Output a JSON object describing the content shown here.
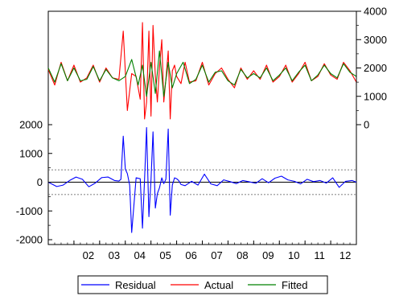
{
  "chart_data": {
    "type": "line",
    "x_range": [
      2001.0,
      2013.0
    ],
    "x_ticks": [
      {
        "label": "02",
        "value": 2002
      },
      {
        "label": "03",
        "value": 2003
      },
      {
        "label": "04",
        "value": 2004
      },
      {
        "label": "05",
        "value": 2005
      },
      {
        "label": "06",
        "value": 2006
      },
      {
        "label": "07",
        "value": 2007
      },
      {
        "label": "08",
        "value": 2008
      },
      {
        "label": "09",
        "value": 2009
      },
      {
        "label": "10",
        "value": 2010
      },
      {
        "label": "11",
        "value": 2011
      },
      {
        "label": "12",
        "value": 2012
      }
    ],
    "left_axis": {
      "series": "Residual",
      "ylim": [
        -2000,
        2000
      ],
      "ticks": [
        {
          "label": "2000",
          "value": 2000
        },
        {
          "label": "1000",
          "value": 1000
        },
        {
          "label": "0",
          "value": 0
        },
        {
          "label": "-1000",
          "value": -1000
        },
        {
          "label": "-2000",
          "value": -2000
        }
      ],
      "reference_lines": [
        430,
        -430
      ]
    },
    "right_axis": {
      "series": [
        "Actual",
        "Fitted"
      ],
      "ylim": [
        0,
        4000
      ],
      "ticks": [
        {
          "label": "4000",
          "value": 4000
        },
        {
          "label": "3000",
          "value": 3000
        },
        {
          "label": "2000",
          "value": 2000
        },
        {
          "label": "1000",
          "value": 1000
        },
        {
          "label": "0",
          "value": 0
        }
      ]
    },
    "series": [
      {
        "name": "Residual",
        "color": "#0000ff",
        "axis": "left",
        "x": [
          2001.0,
          2001.33,
          2001.58,
          2001.83,
          2002.08,
          2002.33,
          2002.58,
          2002.83,
          2003.08,
          2003.33,
          2003.58,
          2003.75,
          2003.83,
          2003.92,
          2004.0,
          2004.08,
          2004.17,
          2004.25,
          2004.42,
          2004.58,
          2004.67,
          2004.75,
          2004.83,
          2004.92,
          2005.0,
          2005.08,
          2005.17,
          2005.25,
          2005.33,
          2005.42,
          2005.5,
          2005.58,
          2005.67,
          2005.75,
          2005.83,
          2005.92,
          2006.0,
          2006.08,
          2006.17,
          2006.33,
          2006.58,
          2006.83,
          2007.08,
          2007.33,
          2007.58,
          2007.83,
          2008.08,
          2008.33,
          2008.58,
          2008.83,
          2009.08,
          2009.33,
          2009.58,
          2009.83,
          2010.08,
          2010.33,
          2010.58,
          2010.83,
          2011.08,
          2011.33,
          2011.58,
          2011.83,
          2012.08,
          2012.33,
          2012.58,
          2012.83,
          2013.0
        ],
        "values": [
          0,
          -150,
          -100,
          60,
          180,
          100,
          -160,
          -30,
          160,
          180,
          60,
          40,
          100,
          1600,
          450,
          300,
          -100,
          -1750,
          150,
          120,
          -1600,
          100,
          1900,
          -1200,
          80,
          1750,
          -900,
          -400,
          -200,
          150,
          -50,
          100,
          1850,
          -1150,
          -100,
          150,
          120,
          60,
          -80,
          -120,
          30,
          -100,
          280,
          -60,
          -120,
          80,
          20,
          -50,
          60,
          10,
          -40,
          120,
          -20,
          140,
          210,
          80,
          30,
          -60,
          100,
          20,
          60,
          -30,
          150,
          -180,
          30,
          60,
          0
        ]
      },
      {
        "name": "Actual",
        "color": "#ff0000",
        "axis": "right",
        "x": [
          2001.0,
          2001.25,
          2001.5,
          2001.75,
          2002.0,
          2002.25,
          2002.5,
          2002.75,
          2003.0,
          2003.25,
          2003.5,
          2003.75,
          2003.92,
          2004.08,
          2004.25,
          2004.42,
          2004.58,
          2004.67,
          2004.75,
          2004.83,
          2004.92,
          2005.0,
          2005.08,
          2005.17,
          2005.25,
          2005.33,
          2005.42,
          2005.5,
          2005.58,
          2005.67,
          2005.75,
          2005.83,
          2005.92,
          2006.0,
          2006.17,
          2006.33,
          2006.5,
          2006.75,
          2007.0,
          2007.25,
          2007.5,
          2007.75,
          2008.0,
          2008.25,
          2008.5,
          2008.75,
          2009.0,
          2009.25,
          2009.5,
          2009.75,
          2010.0,
          2010.25,
          2010.5,
          2010.75,
          2011.0,
          2011.25,
          2011.5,
          2011.75,
          2012.0,
          2012.25,
          2012.5,
          2012.75,
          2013.0
        ],
        "values": [
          1950,
          1400,
          2200,
          1550,
          2100,
          1500,
          1650,
          2100,
          1500,
          2000,
          1650,
          1600,
          3300,
          500,
          1800,
          1700,
          900,
          3600,
          200,
          800,
          3300,
          300,
          3500,
          1700,
          800,
          2000,
          3000,
          800,
          1600,
          2600,
          200,
          1900,
          2100,
          1700,
          1450,
          2200,
          1500,
          1550,
          2200,
          1400,
          1800,
          2000,
          1600,
          1300,
          2000,
          1600,
          1900,
          1600,
          2100,
          1500,
          1700,
          2100,
          1500,
          1800,
          2200,
          1550,
          1700,
          2150,
          1750,
          1600,
          2200,
          1900,
          1500
        ]
      },
      {
        "name": "Fitted",
        "color": "#008000",
        "axis": "right",
        "x": [
          2001.0,
          2001.25,
          2001.5,
          2001.75,
          2002.0,
          2002.25,
          2002.5,
          2002.75,
          2003.0,
          2003.25,
          2003.5,
          2003.75,
          2004.0,
          2004.25,
          2004.5,
          2004.67,
          2004.83,
          2005.0,
          2005.17,
          2005.33,
          2005.5,
          2005.67,
          2005.83,
          2006.0,
          2006.25,
          2006.5,
          2006.75,
          2007.0,
          2007.25,
          2007.5,
          2007.75,
          2008.0,
          2008.25,
          2008.5,
          2008.75,
          2009.0,
          2009.25,
          2009.5,
          2009.75,
          2010.0,
          2010.25,
          2010.5,
          2010.75,
          2011.0,
          2011.25,
          2011.5,
          2011.75,
          2012.0,
          2012.25,
          2012.5,
          2012.75,
          2013.0
        ],
        "values": [
          2000,
          1500,
          2150,
          1550,
          2000,
          1550,
          1600,
          2050,
          1550,
          1950,
          1650,
          1550,
          1700,
          2300,
          1400,
          2100,
          1000,
          2200,
          1100,
          2600,
          1000,
          2200,
          1300,
          1800,
          2200,
          1450,
          1600,
          2100,
          1500,
          1850,
          1900,
          1550,
          1400,
          1950,
          1650,
          1800,
          1650,
          2000,
          1550,
          1750,
          2000,
          1550,
          1850,
          2100,
          1550,
          1750,
          2100,
          1800,
          1650,
          2150,
          1850,
          1700
        ]
      }
    ],
    "legend": {
      "placement": "bottom",
      "entries": [
        {
          "label": "Residual",
          "color": "#0000ff"
        },
        {
          "label": "Actual",
          "color": "#ff0000"
        },
        {
          "label": "Fitted",
          "color": "#008000"
        }
      ]
    }
  }
}
